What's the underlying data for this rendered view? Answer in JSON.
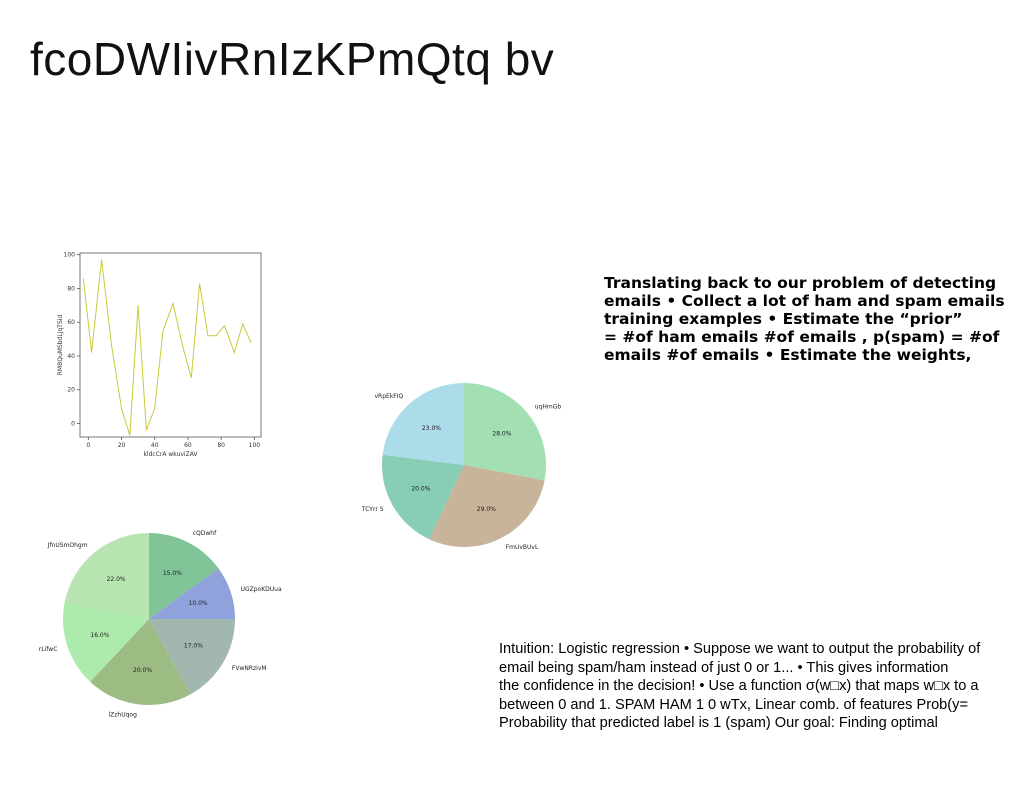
{
  "slide": {
    "title": "fcoDWIivRnIzKPmQtq bv",
    "text_block_lines": [
      "Translating back to our problem of detecting",
      "emails • Collect a lot of ham and spam emails",
      "training examples • Estimate the “prior”",
      "= #of ham emails #of emails , p(spam) = #of",
      "emails #of emails • Estimate the weights,"
    ],
    "note_block_lines": [
      "Intuition: Logistic regression • Suppose we want to output the probability of",
      "email being spam/ham instead of just 0 or 1... • This gives information",
      "the confidence in the decision! • Use a function σ(w□x) that maps w□x to a",
      "between 0 and 1. SPAM HAM 1 0 wTx, Linear comb. of features Prob(y=",
      "Probability that predicted label is 1 (spam) Our goal: Finding optimal"
    ]
  },
  "chart_data": [
    {
      "type": "line",
      "xlabel": "kldcCrA wkuviZAV",
      "ylabel": "RMBQuMSbdLJqTSid",
      "xlim": [
        -5,
        104
      ],
      "ylim": [
        -8,
        101
      ],
      "xticks": [
        0,
        20,
        40,
        60,
        80,
        100
      ],
      "yticks": [
        0,
        20,
        40,
        60,
        80,
        100
      ],
      "grid": false,
      "color": "#c9c93a",
      "x": [
        -3,
        2,
        8,
        14,
        20,
        25,
        30,
        35,
        40,
        45,
        51,
        57,
        62,
        67,
        72,
        77,
        82,
        88,
        93,
        98
      ],
      "y": [
        86,
        42,
        97,
        46,
        9,
        -7,
        70,
        -4,
        9,
        55,
        71,
        45,
        27,
        83,
        52,
        52,
        58,
        42,
        59,
        48
      ]
    },
    {
      "type": "pie",
      "labels": [
        "uqHmGb",
        "FmUvBUvL",
        "TCYrr S",
        "vRpEkFIQ"
      ],
      "values": [
        28.0,
        29.0,
        20.0,
        23.0
      ],
      "pct_labels": [
        "28.0%",
        "29.0%",
        "20.0%",
        "23.0%"
      ],
      "colors": [
        "#a2e0b3",
        "#c8b49b",
        "#88cdb6",
        "#acdbe9"
      ]
    },
    {
      "type": "pie",
      "labels": [
        "cQDwhf",
        "UGZpoKDUua",
        "FVwNRzivM",
        "lZzhUqog",
        "rLifwC",
        "JfnUSmOhgm"
      ],
      "values": [
        15.0,
        10.0,
        17.0,
        20.0,
        16.0,
        22.0
      ],
      "pct_labels": [
        "15.0%",
        "10.0%",
        "17.0%",
        "20.0%",
        "16.0%",
        "22.0%"
      ],
      "colors": [
        "#80c497",
        "#8fa2db",
        "#a2b7ad",
        "#9dbc84",
        "#acebac",
        "#b8e4b2"
      ]
    }
  ]
}
